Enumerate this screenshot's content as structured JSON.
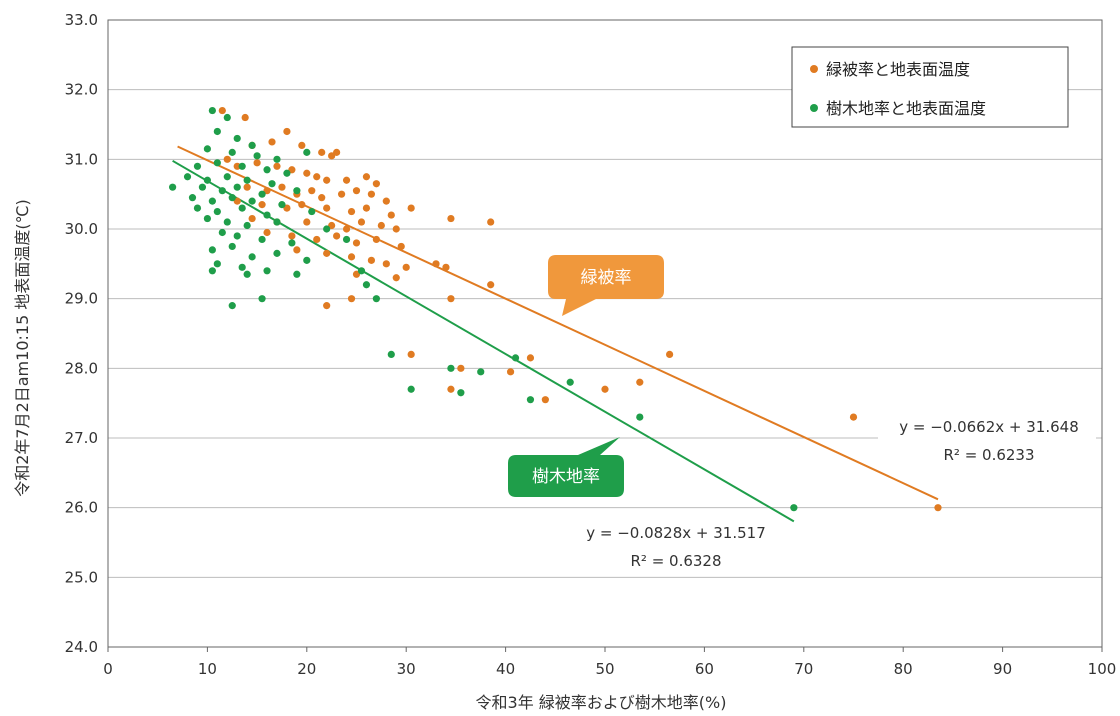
{
  "chart_data": {
    "type": "scatter",
    "xlabel": "令和3年 緑被率および樹木地率(%)",
    "ylabel": "令和2年7月2日am10:15 地表面温度(℃)",
    "xlim": [
      0,
      100
    ],
    "ylim": [
      24.0,
      33.0
    ],
    "x_ticks": [
      "0",
      "10",
      "20",
      "30",
      "40",
      "50",
      "60",
      "70",
      "80",
      "90",
      "100"
    ],
    "y_ticks": [
      "24.0",
      "25.0",
      "26.0",
      "27.0",
      "28.0",
      "29.0",
      "30.0",
      "31.0",
      "32.0",
      "33.0"
    ],
    "grid": "horizontal",
    "legend_position": "top-right",
    "colors": {
      "green_cover": "#e07b22",
      "tree_cover": "#1f9e4a"
    },
    "series": [
      {
        "name": "緑被率と地表面温度",
        "key": "green_cover",
        "callout": "緑被率",
        "trend": {
          "slope": -0.0662,
          "intercept": 31.648,
          "x_range": [
            7,
            83.5
          ]
        },
        "equation": "y = −0.0662x + 31.648",
        "r2": "R² = 0.6233",
        "points": [
          [
            11.5,
            31.7
          ],
          [
            13.8,
            31.6
          ],
          [
            18.0,
            31.4
          ],
          [
            14.5,
            31.2
          ],
          [
            16.5,
            31.25
          ],
          [
            19.5,
            31.2
          ],
          [
            21.5,
            31.1
          ],
          [
            22.5,
            31.05
          ],
          [
            23.0,
            31.1
          ],
          [
            12.0,
            31.0
          ],
          [
            13.0,
            30.9
          ],
          [
            15.0,
            30.95
          ],
          [
            17.0,
            30.9
          ],
          [
            18.5,
            30.85
          ],
          [
            20.0,
            30.8
          ],
          [
            21.0,
            30.75
          ],
          [
            22.0,
            30.7
          ],
          [
            24.0,
            30.7
          ],
          [
            26.0,
            30.75
          ],
          [
            27.0,
            30.65
          ],
          [
            14.0,
            30.6
          ],
          [
            16.0,
            30.55
          ],
          [
            17.5,
            30.6
          ],
          [
            19.0,
            30.5
          ],
          [
            20.5,
            30.55
          ],
          [
            21.5,
            30.45
          ],
          [
            23.5,
            30.5
          ],
          [
            25.0,
            30.55
          ],
          [
            26.5,
            30.5
          ],
          [
            28.0,
            30.4
          ],
          [
            13.0,
            30.4
          ],
          [
            15.5,
            30.35
          ],
          [
            18.0,
            30.3
          ],
          [
            19.5,
            30.35
          ],
          [
            22.0,
            30.3
          ],
          [
            24.5,
            30.25
          ],
          [
            26.0,
            30.3
          ],
          [
            28.5,
            30.2
          ],
          [
            30.5,
            30.3
          ],
          [
            14.5,
            30.15
          ],
          [
            17.0,
            30.1
          ],
          [
            20.0,
            30.1
          ],
          [
            22.5,
            30.05
          ],
          [
            24.0,
            30.0
          ],
          [
            25.5,
            30.1
          ],
          [
            27.5,
            30.05
          ],
          [
            29.0,
            30.0
          ],
          [
            34.5,
            30.15
          ],
          [
            38.5,
            30.1
          ],
          [
            16.0,
            29.95
          ],
          [
            18.5,
            29.9
          ],
          [
            21.0,
            29.85
          ],
          [
            23.0,
            29.9
          ],
          [
            25.0,
            29.8
          ],
          [
            27.0,
            29.85
          ],
          [
            29.5,
            29.75
          ],
          [
            19.0,
            29.7
          ],
          [
            22.0,
            29.65
          ],
          [
            24.5,
            29.6
          ],
          [
            26.5,
            29.55
          ],
          [
            28.0,
            29.5
          ],
          [
            30.0,
            29.45
          ],
          [
            33.0,
            29.5
          ],
          [
            34.0,
            29.45
          ],
          [
            25.0,
            29.35
          ],
          [
            29.0,
            29.3
          ],
          [
            38.5,
            29.2
          ],
          [
            24.5,
            29.0
          ],
          [
            34.5,
            29.0
          ],
          [
            22.0,
            28.9
          ],
          [
            30.5,
            28.2
          ],
          [
            42.5,
            28.15
          ],
          [
            56.5,
            28.2
          ],
          [
            35.5,
            28.0
          ],
          [
            40.5,
            27.95
          ],
          [
            53.5,
            27.8
          ],
          [
            34.5,
            27.7
          ],
          [
            50.0,
            27.7
          ],
          [
            44.0,
            27.55
          ],
          [
            75.0,
            27.3
          ],
          [
            83.5,
            26.0
          ]
        ]
      },
      {
        "name": "樹木地率と地表面温度",
        "key": "tree_cover",
        "callout": "樹木地率",
        "trend": {
          "slope": -0.0828,
          "intercept": 31.517,
          "x_range": [
            6.5,
            69
          ]
        },
        "equation": "y = −0.0828x + 31.517",
        "r2": "R² = 0.6328",
        "points": [
          [
            10.5,
            31.7
          ],
          [
            12.0,
            31.6
          ],
          [
            11.0,
            31.4
          ],
          [
            13.0,
            31.3
          ],
          [
            14.5,
            31.2
          ],
          [
            10.0,
            31.15
          ],
          [
            12.5,
            31.1
          ],
          [
            15.0,
            31.05
          ],
          [
            17.0,
            31.0
          ],
          [
            20.0,
            31.1
          ],
          [
            9.0,
            30.9
          ],
          [
            11.0,
            30.95
          ],
          [
            13.5,
            30.9
          ],
          [
            16.0,
            30.85
          ],
          [
            18.0,
            30.8
          ],
          [
            8.0,
            30.75
          ],
          [
            10.0,
            30.7
          ],
          [
            12.0,
            30.75
          ],
          [
            14.0,
            30.7
          ],
          [
            16.5,
            30.65
          ],
          [
            6.5,
            30.6
          ],
          [
            9.5,
            30.6
          ],
          [
            11.5,
            30.55
          ],
          [
            13.0,
            30.6
          ],
          [
            15.5,
            30.5
          ],
          [
            19.0,
            30.55
          ],
          [
            8.5,
            30.45
          ],
          [
            10.5,
            30.4
          ],
          [
            12.5,
            30.45
          ],
          [
            14.5,
            30.4
          ],
          [
            17.5,
            30.35
          ],
          [
            9.0,
            30.3
          ],
          [
            11.0,
            30.25
          ],
          [
            13.5,
            30.3
          ],
          [
            16.0,
            30.2
          ],
          [
            20.5,
            30.25
          ],
          [
            10.0,
            30.15
          ],
          [
            12.0,
            30.1
          ],
          [
            14.0,
            30.05
          ],
          [
            17.0,
            30.1
          ],
          [
            22.0,
            30.0
          ],
          [
            11.5,
            29.95
          ],
          [
            13.0,
            29.9
          ],
          [
            15.5,
            29.85
          ],
          [
            18.5,
            29.8
          ],
          [
            24.0,
            29.85
          ],
          [
            10.5,
            29.7
          ],
          [
            12.5,
            29.75
          ],
          [
            14.5,
            29.6
          ],
          [
            17.0,
            29.65
          ],
          [
            20.0,
            29.55
          ],
          [
            11.0,
            29.5
          ],
          [
            13.5,
            29.45
          ],
          [
            16.0,
            29.4
          ],
          [
            19.0,
            29.35
          ],
          [
            25.5,
            29.4
          ],
          [
            10.5,
            29.4
          ],
          [
            14.0,
            29.35
          ],
          [
            26.0,
            29.2
          ],
          [
            15.5,
            29.0
          ],
          [
            27.0,
            29.0
          ],
          [
            12.5,
            28.9
          ],
          [
            28.5,
            28.2
          ],
          [
            34.5,
            28.0
          ],
          [
            37.5,
            27.95
          ],
          [
            41.0,
            28.15
          ],
          [
            30.5,
            27.7
          ],
          [
            35.5,
            27.65
          ],
          [
            46.5,
            27.8
          ],
          [
            42.5,
            27.55
          ],
          [
            53.5,
            27.3
          ],
          [
            69.0,
            26.0
          ]
        ]
      }
    ]
  }
}
